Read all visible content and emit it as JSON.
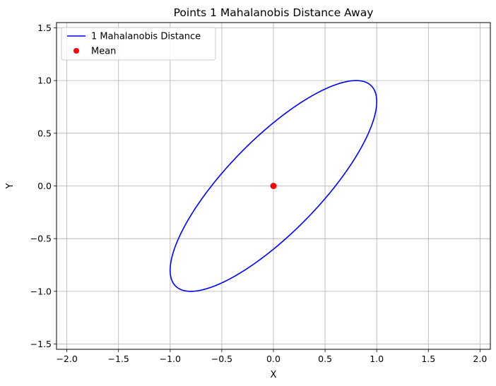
{
  "chart_data": {
    "type": "line",
    "title": "Points 1 Mahalanobis Distance Away",
    "xlabel": "X",
    "ylabel": "Y",
    "xlim": [
      -2.1,
      2.1
    ],
    "ylim": [
      -1.55,
      1.55
    ],
    "xticks": [
      -2.0,
      -1.5,
      -1.0,
      -0.5,
      0.0,
      0.5,
      1.0,
      1.5,
      2.0
    ],
    "xtick_labels": [
      "−2.0",
      "−1.5",
      "−1.0",
      "−0.5",
      "0.0",
      "0.5",
      "1.0",
      "1.5",
      "2.0"
    ],
    "yticks": [
      -1.5,
      -1.0,
      -0.5,
      0.0,
      0.5,
      1.0,
      1.5
    ],
    "ytick_labels": [
      "−1.5",
      "−1.0",
      "−0.5",
      "0.0",
      "0.5",
      "1.0",
      "1.5"
    ],
    "grid": true,
    "legend_position": "top-left",
    "series": [
      {
        "name": "1 Mahalanobis Distance",
        "kind": "ellipse",
        "color": "#0000ff",
        "center": [
          0.0,
          0.0
        ],
        "covariance": [
          [
            1.0,
            0.8
          ],
          [
            0.8,
            1.0
          ]
        ],
        "mahalanobis_distance": 1
      },
      {
        "name": "Mean",
        "kind": "point",
        "color": "#ff0000",
        "x": [
          0.0
        ],
        "y": [
          0.0
        ]
      }
    ]
  }
}
